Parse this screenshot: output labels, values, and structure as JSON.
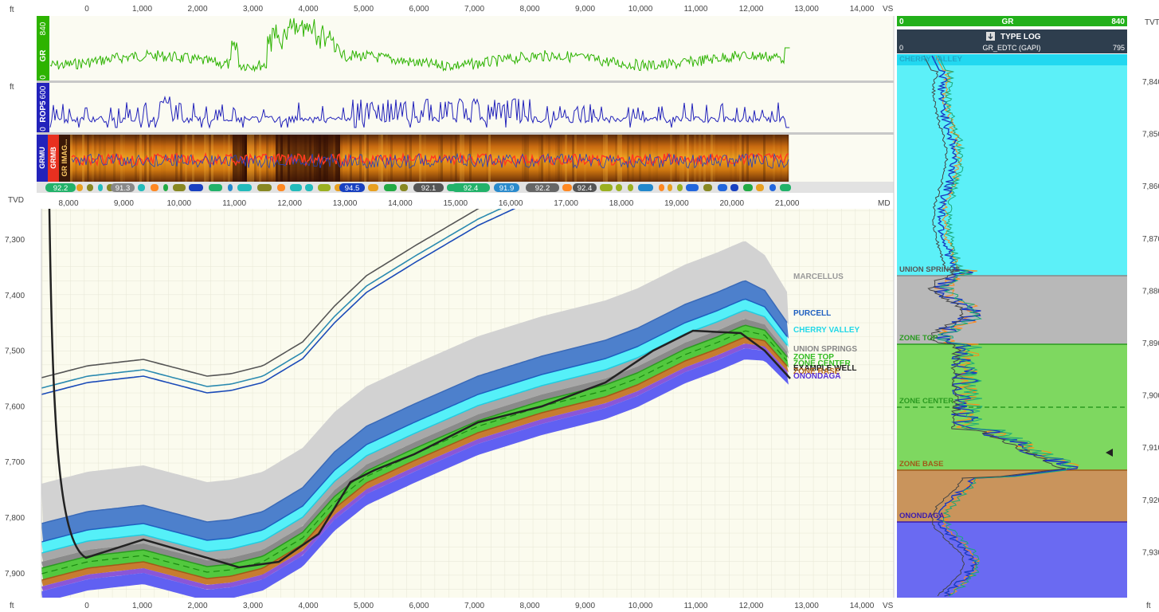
{
  "units": {
    "left_top": "ft",
    "left_bottom": "ft",
    "right_top": "TVT",
    "right_bottom": "ft"
  },
  "vs_axis": {
    "label": "VS",
    "ticks": [
      "0",
      "1,000",
      "2,000",
      "3,000",
      "4,000",
      "5,000",
      "6,000",
      "7,000",
      "8,000",
      "9,000",
      "10,000",
      "11,000",
      "12,000",
      "13,000",
      "14,000"
    ]
  },
  "md_axis": {
    "label": "MD",
    "ticks": [
      "8,000",
      "9,000",
      "10,000",
      "11,000",
      "12,000",
      "13,000",
      "14,000",
      "15,000",
      "16,000",
      "17,000",
      "18,000",
      "19,000",
      "20,000",
      "21,000"
    ]
  },
  "tvd_axis": {
    "label": "TVD",
    "ticks": [
      "7,300",
      "7,400",
      "7,500",
      "7,600",
      "7,700",
      "7,800",
      "7,900"
    ]
  },
  "tvt_axis": {
    "ticks": [
      "7,840",
      "7,850",
      "7,860",
      "7,870",
      "7,880",
      "7,890",
      "7,900",
      "7,910",
      "7,920",
      "7,930"
    ]
  },
  "tracks": {
    "gr": {
      "name": "GR",
      "min": "0",
      "max": "840",
      "color": "#2db300"
    },
    "rop": {
      "name": "ROP5",
      "min": "0",
      "max": "600",
      "color": "#2222bb"
    },
    "image": {
      "labels": [
        "GRMU",
        "GRMB",
        "GR IMAG..."
      ]
    }
  },
  "dip_badges": [
    "92.2",
    "91.3",
    "94.5",
    "92.1",
    "92.4",
    "91.9",
    "92.2",
    "92.4"
  ],
  "formations": [
    {
      "name": "MARCELLUS",
      "color": "#9a9a9a"
    },
    {
      "name": "PURCELL",
      "color": "#1e5fc0"
    },
    {
      "name": "CHERRY VALLEY",
      "color": "#22d8e8"
    },
    {
      "name": "UNION SPRINGS",
      "color": "#888888"
    },
    {
      "name": "ZONE TOP",
      "color": "#33bb22"
    },
    {
      "name": "ZONE CENTER",
      "color": "#33bb22"
    },
    {
      "name": "EXAMPLE WELL",
      "color": "#222222"
    },
    {
      "name": "ZONE BASE",
      "color": "#b86a1c"
    },
    {
      "name": "ONONDAGA",
      "color": "#5a32d8"
    }
  ],
  "type_log": {
    "header_gr": {
      "name": "GR",
      "min": "0",
      "max": "840"
    },
    "title": "TYPE LOG",
    "curve": {
      "name": "GR_EDTC (GAPI)",
      "min": "0",
      "max": "795"
    },
    "zones": [
      {
        "name": "CHERRY VALLEY",
        "color": "#5cf0f8"
      },
      {
        "name": "UNION SPRINGS",
        "color": "#b8b8b8"
      },
      {
        "name": "ZONE TOP",
        "color": "#7ed860"
      },
      {
        "name": "ZONE CENTER",
        "color": "#7ed860"
      },
      {
        "name": "ZONE BASE",
        "color": "#c9945c"
      },
      {
        "name": "ONONDAGA",
        "color": "#6a6af2"
      }
    ]
  }
}
